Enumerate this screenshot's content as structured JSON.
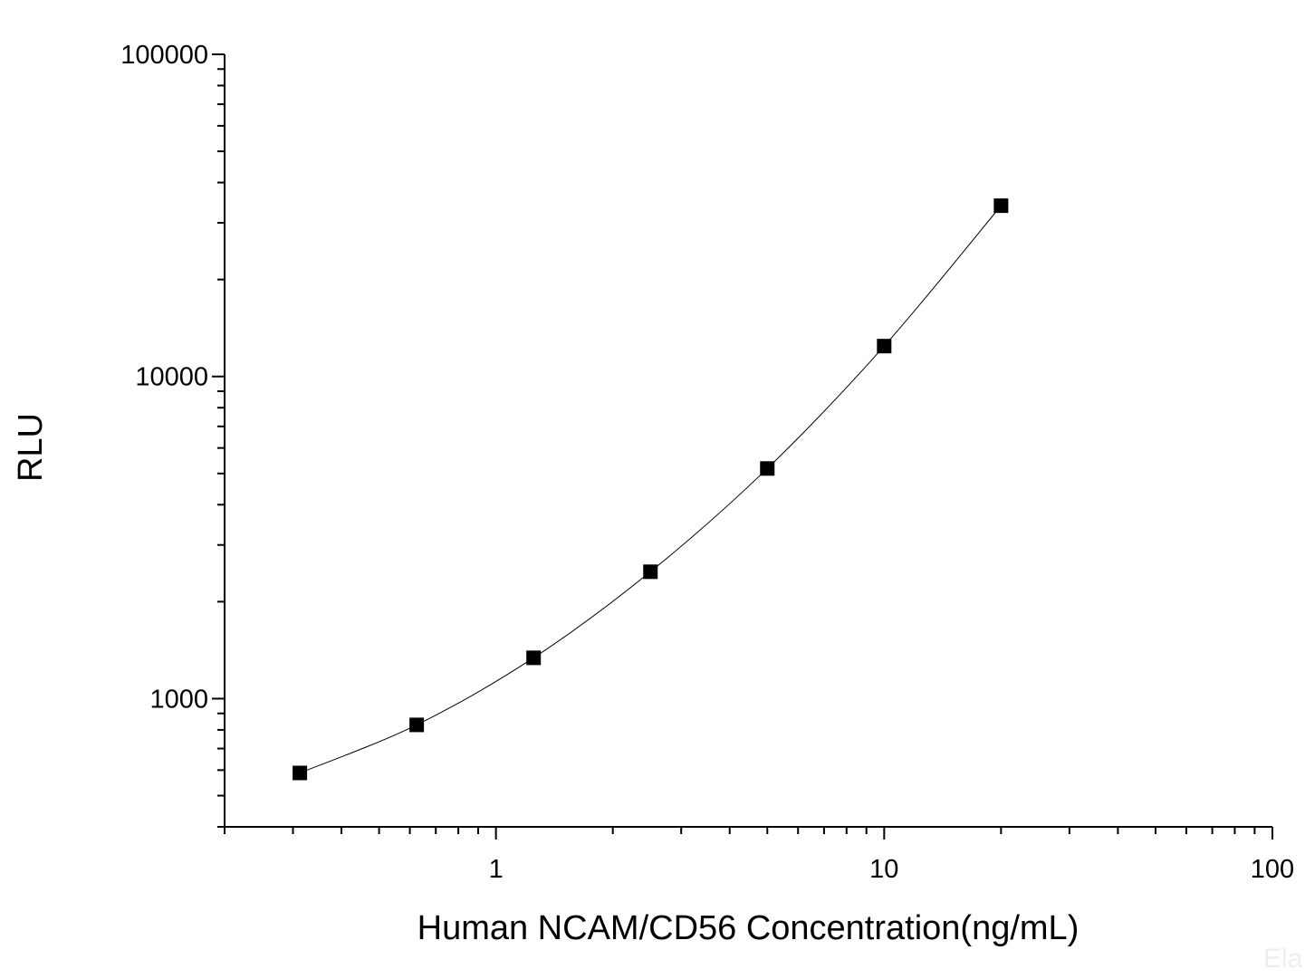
{
  "chart_data": {
    "type": "line",
    "title": "",
    "xlabel": "Human NCAM/CD56 Concentration(ng/mL)",
    "ylabel": "RLU",
    "xscale": "log",
    "yscale": "log",
    "xlim": [
      0.2,
      100
    ],
    "ylim": [
      400,
      100000
    ],
    "x_ticks": [
      "1",
      "10",
      "100"
    ],
    "y_ticks": [
      "1000",
      "10000",
      "100000"
    ],
    "grid": false,
    "legend": "none",
    "marker": "square",
    "color": "#000000",
    "series": [
      {
        "x": [
          0.3125,
          0.625,
          1.25,
          2.5,
          5,
          10,
          20
        ],
        "y": [
          588,
          829,
          1339,
          2477,
          5181,
          12425,
          33900
        ]
      }
    ]
  },
  "watermark": "Ela"
}
